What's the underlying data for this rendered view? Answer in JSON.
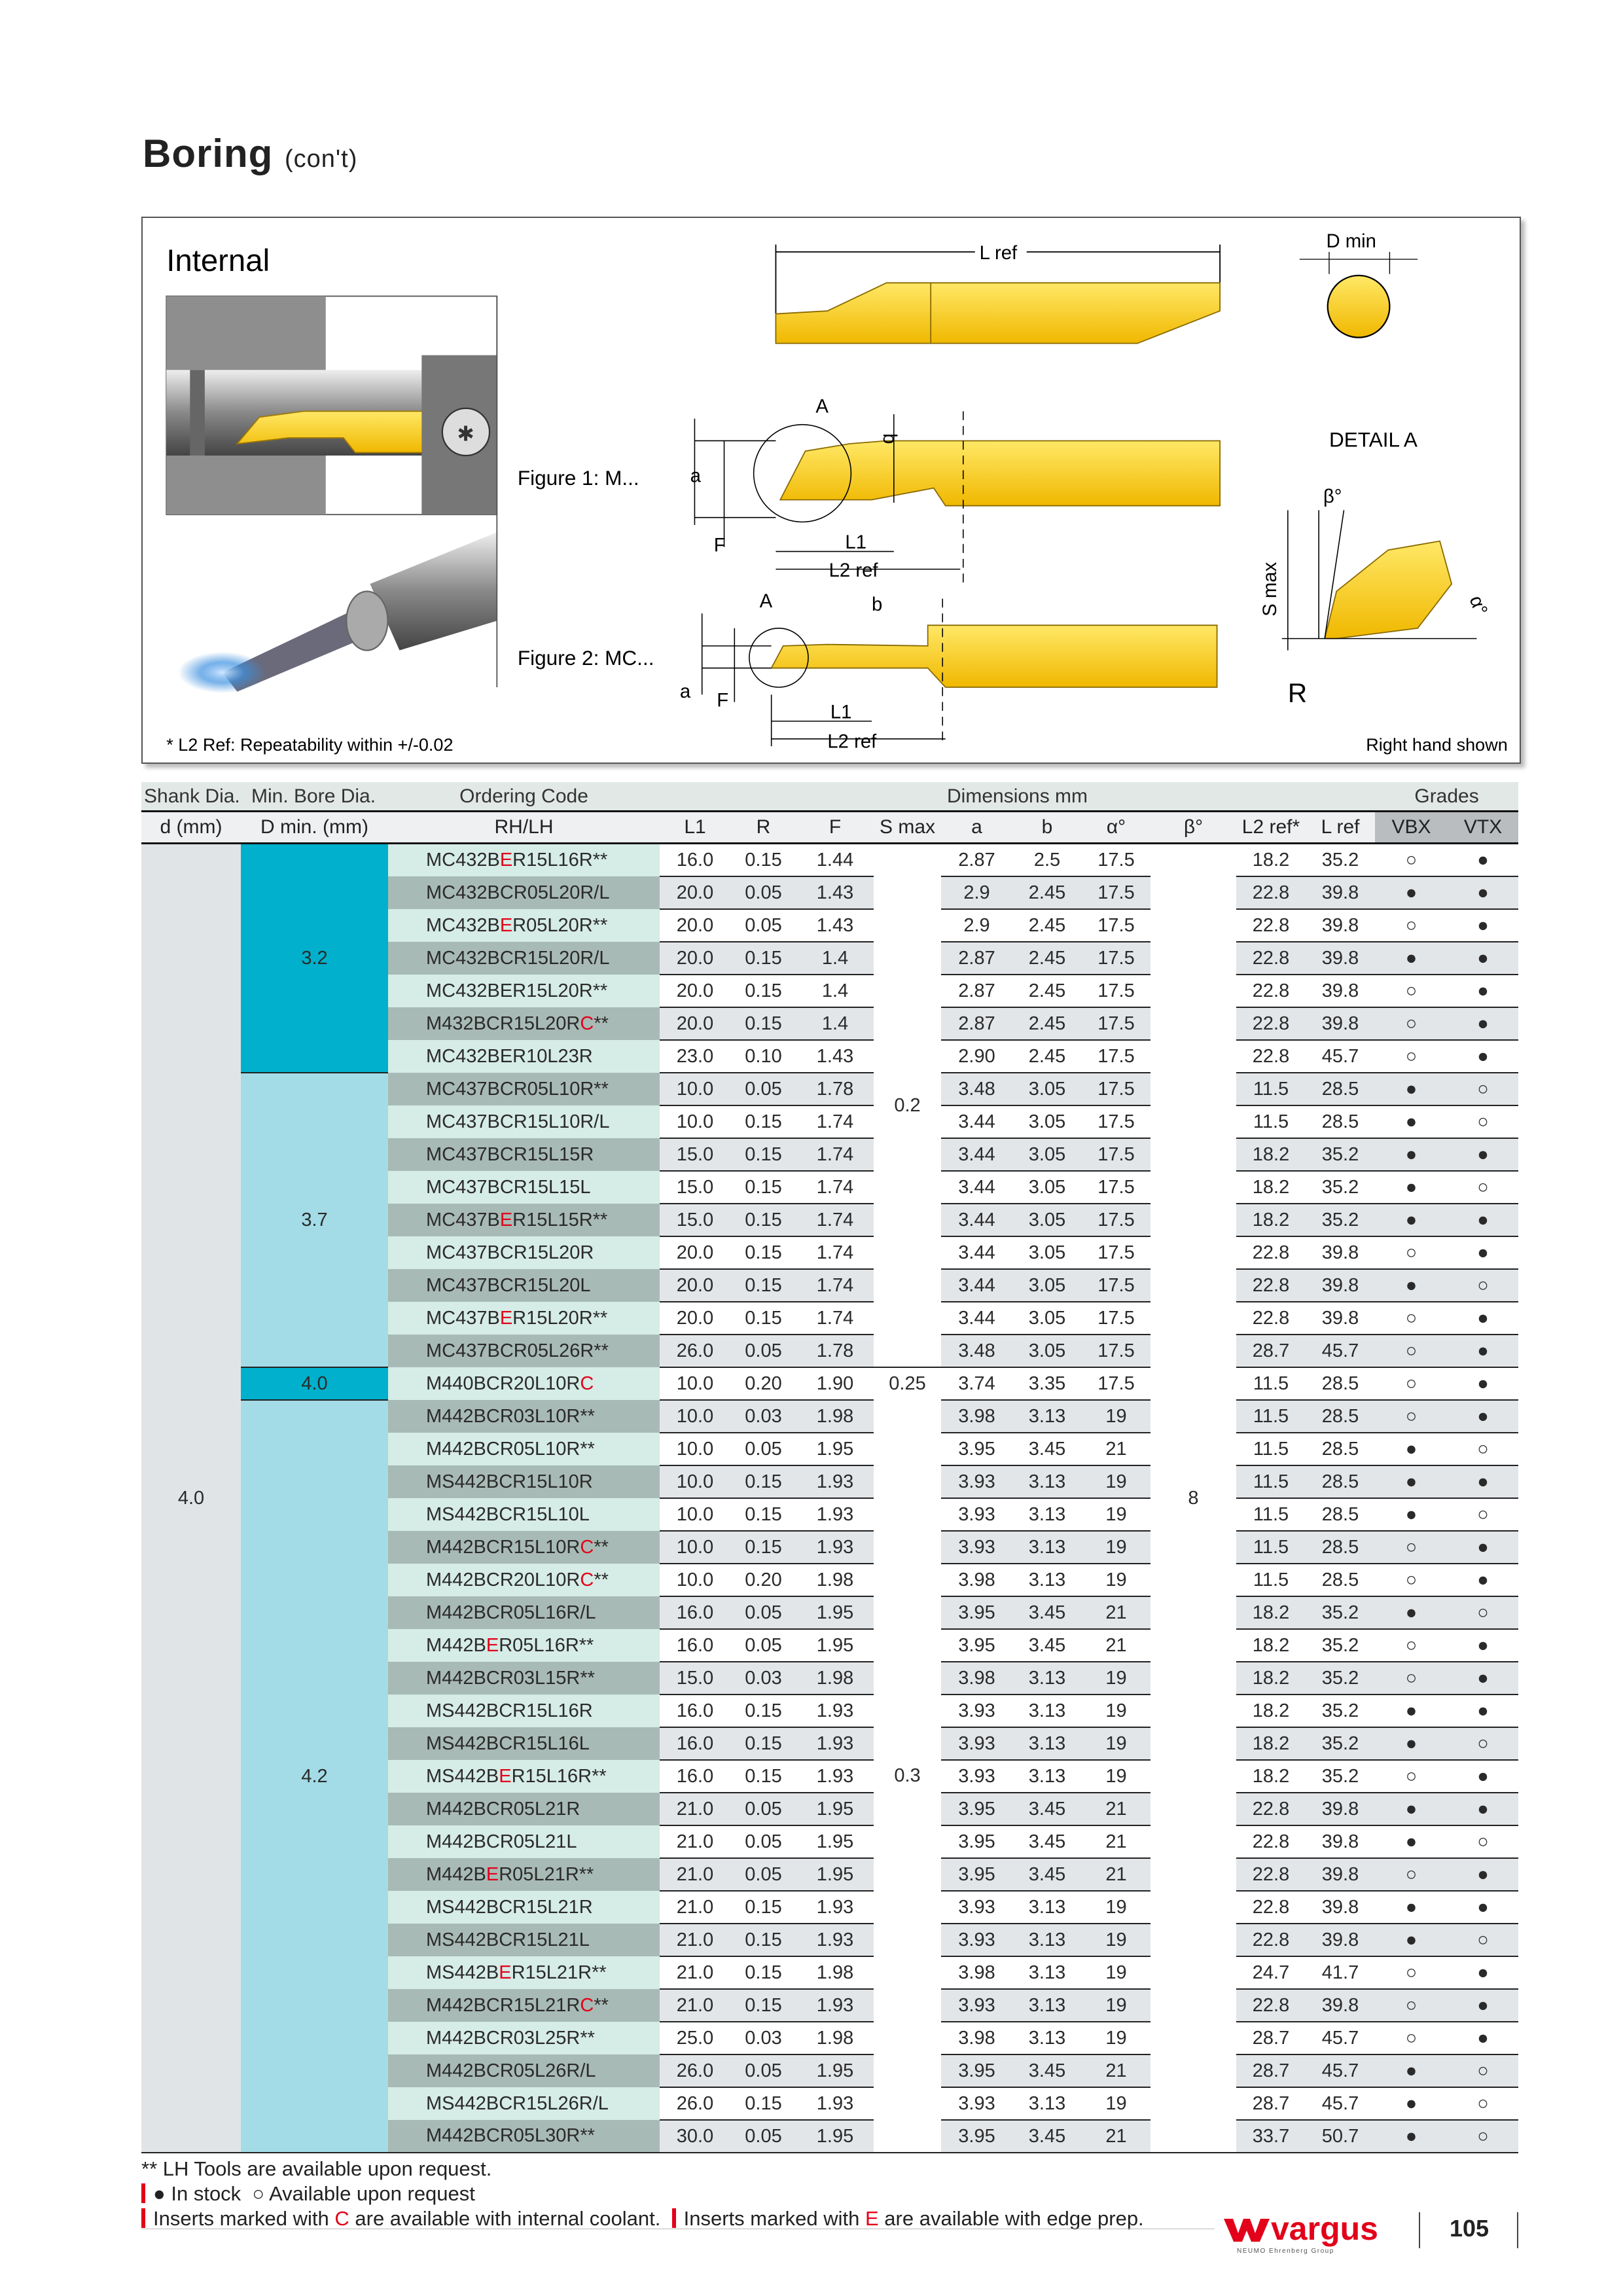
{
  "header": {
    "title": "Boring",
    "subtitle": "(con't)"
  },
  "figure": {
    "section_label": "Internal",
    "figure1_label": "Figure 1: M...",
    "figure2_label": "Figure 2: MC...",
    "detail_label": "DETAIL A",
    "dims": {
      "lref": "L ref",
      "dmin": "D min",
      "A": "A",
      "b": "b",
      "a": "a",
      "F": "F",
      "L1": "L1",
      "L2ref": "L2 ref",
      "beta": "β°",
      "smax": "S max",
      "alpha": "α°",
      "R": "R"
    },
    "footnote": "* L2 Ref: Repeatability within +/-0.02",
    "hand_note": "Right hand shown",
    "colors": {
      "insert_yellow": "#ffd200",
      "accent_red": "#e2001a",
      "dmin_dark": "#00b0cc",
      "dmin_light": "#a3dce6"
    }
  },
  "table": {
    "group_headers": {
      "shank": "Shank Dia.",
      "dmin": "Min. Bore Dia.",
      "code": "Ordering Code",
      "dims": "Dimensions mm",
      "grades": "Grades"
    },
    "columns": {
      "shank": "d (mm)",
      "dmin": "D min. (mm)",
      "code": "RH/LH",
      "L1": "L1",
      "R": "R",
      "F": "F",
      "smax": "S max",
      "a": "a",
      "b": "b",
      "alpha": "α°",
      "beta": "β°",
      "L2": "L2 ref*",
      "Lref": "L ref",
      "VBX": "VBX",
      "VTX": "VTX"
    },
    "shank_value": "4.0",
    "beta_value": "8",
    "dmin_groups": [
      {
        "value": "3.2",
        "rows": 7,
        "style": "dark"
      },
      {
        "value": "3.7",
        "rows": 9,
        "style": "light"
      },
      {
        "value": "4.0",
        "rows": 1,
        "style": "dark"
      },
      {
        "value": "4.2",
        "rows": 23,
        "style": "light"
      }
    ],
    "smax_groups": [
      {
        "value": "0.2",
        "rows": 16
      },
      {
        "value": "0.25",
        "rows": 1
      },
      {
        "value": "0.3",
        "rows": 23
      }
    ],
    "row_fields": [
      "code_pre",
      "code_highlight",
      "code_post",
      "L1",
      "R",
      "F",
      "a",
      "b",
      "alpha",
      "L2",
      "Lref",
      "VBX",
      "VTX"
    ],
    "rows": [
      [
        "MC432B",
        "E",
        "R15L16R**",
        "16.0",
        "0.15",
        "1.44",
        "2.87",
        "2.5",
        "17.5",
        "18.2",
        "35.2",
        "○",
        "●"
      ],
      [
        "MC432BCR05L20R/L",
        "",
        "",
        "20.0",
        "0.05",
        "1.43",
        "2.9",
        "2.45",
        "17.5",
        "22.8",
        "39.8",
        "●",
        "●"
      ],
      [
        "MC432B",
        "E",
        "R05L20R**",
        "20.0",
        "0.05",
        "1.43",
        "2.9",
        "2.45",
        "17.5",
        "22.8",
        "39.8",
        "○",
        "●"
      ],
      [
        "MC432BCR15L20R/L",
        "",
        "",
        "20.0",
        "0.15",
        "1.4",
        "2.87",
        "2.45",
        "17.5",
        "22.8",
        "39.8",
        "●",
        "●"
      ],
      [
        "MC432BER15L20R**",
        "",
        "",
        "20.0",
        "0.15",
        "1.4",
        "2.87",
        "2.45",
        "17.5",
        "22.8",
        "39.8",
        "○",
        "●"
      ],
      [
        "M432BCR15L20R",
        "C",
        "**",
        "20.0",
        "0.15",
        "1.4",
        "2.87",
        "2.45",
        "17.5",
        "22.8",
        "39.8",
        "○",
        "●"
      ],
      [
        "MC432BER10L23R",
        "",
        "",
        "23.0",
        "0.10",
        "1.43",
        "2.90",
        "2.45",
        "17.5",
        "22.8",
        "45.7",
        "○",
        "●"
      ],
      [
        "MC437BCR05L10R**",
        "",
        "",
        "10.0",
        "0.05",
        "1.78",
        "3.48",
        "3.05",
        "17.5",
        "11.5",
        "28.5",
        "●",
        "○"
      ],
      [
        "MC437BCR15L10R/L",
        "",
        "",
        "10.0",
        "0.15",
        "1.74",
        "3.44",
        "3.05",
        "17.5",
        "11.5",
        "28.5",
        "●",
        "○"
      ],
      [
        "MC437BCR15L15R",
        "",
        "",
        "15.0",
        "0.15",
        "1.74",
        "3.44",
        "3.05",
        "17.5",
        "18.2",
        "35.2",
        "●",
        "●"
      ],
      [
        "MC437BCR15L15L",
        "",
        "",
        "15.0",
        "0.15",
        "1.74",
        "3.44",
        "3.05",
        "17.5",
        "18.2",
        "35.2",
        "●",
        "○"
      ],
      [
        "MC437B",
        "E",
        "R15L15R**",
        "15.0",
        "0.15",
        "1.74",
        "3.44",
        "3.05",
        "17.5",
        "18.2",
        "35.2",
        "●",
        "●"
      ],
      [
        "MC437BCR15L20R",
        "",
        "",
        "20.0",
        "0.15",
        "1.74",
        "3.44",
        "3.05",
        "17.5",
        "22.8",
        "39.8",
        "○",
        "●"
      ],
      [
        "MC437BCR15L20L",
        "",
        "",
        "20.0",
        "0.15",
        "1.74",
        "3.44",
        "3.05",
        "17.5",
        "22.8",
        "39.8",
        "●",
        "○"
      ],
      [
        "MC437B",
        "E",
        "R15L20R**",
        "20.0",
        "0.15",
        "1.74",
        "3.44",
        "3.05",
        "17.5",
        "22.8",
        "39.8",
        "○",
        "●"
      ],
      [
        "MC437BCR05L26R**",
        "",
        "",
        "26.0",
        "0.05",
        "1.78",
        "3.48",
        "3.05",
        "17.5",
        "28.7",
        "45.7",
        "○",
        "●"
      ],
      [
        "M440BCR20L10R",
        "C",
        "",
        "10.0",
        "0.20",
        "1.90",
        "3.74",
        "3.35",
        "17.5",
        "11.5",
        "28.5",
        "○",
        "●"
      ],
      [
        "M442BCR03L10R**",
        "",
        "",
        "10.0",
        "0.03",
        "1.98",
        "3.98",
        "3.13",
        "19",
        "11.5",
        "28.5",
        "○",
        "●"
      ],
      [
        "M442BCR05L10R**",
        "",
        "",
        "10.0",
        "0.05",
        "1.95",
        "3.95",
        "3.45",
        "21",
        "11.5",
        "28.5",
        "●",
        "○"
      ],
      [
        "MS442BCR15L10R",
        "",
        "",
        "10.0",
        "0.15",
        "1.93",
        "3.93",
        "3.13",
        "19",
        "11.5",
        "28.5",
        "●",
        "●"
      ],
      [
        "MS442BCR15L10L",
        "",
        "",
        "10.0",
        "0.15",
        "1.93",
        "3.93",
        "3.13",
        "19",
        "11.5",
        "28.5",
        "●",
        "○"
      ],
      [
        "M442BCR15L10R",
        "C",
        "**",
        "10.0",
        "0.15",
        "1.93",
        "3.93",
        "3.13",
        "19",
        "11.5",
        "28.5",
        "○",
        "●"
      ],
      [
        "M442BCR20L10R",
        "C",
        "**",
        "10.0",
        "0.20",
        "1.98",
        "3.98",
        "3.13",
        "19",
        "11.5",
        "28.5",
        "○",
        "●"
      ],
      [
        "M442BCR05L16R/L",
        "",
        "",
        "16.0",
        "0.05",
        "1.95",
        "3.95",
        "3.45",
        "21",
        "18.2",
        "35.2",
        "●",
        "○"
      ],
      [
        "M442B",
        "E",
        "R05L16R**",
        "16.0",
        "0.05",
        "1.95",
        "3.95",
        "3.45",
        "21",
        "18.2",
        "35.2",
        "○",
        "●"
      ],
      [
        "M442BCR03L15R**",
        "",
        "",
        "15.0",
        "0.03",
        "1.98",
        "3.98",
        "3.13",
        "19",
        "18.2",
        "35.2",
        "○",
        "●"
      ],
      [
        "MS442BCR15L16R",
        "",
        "",
        "16.0",
        "0.15",
        "1.93",
        "3.93",
        "3.13",
        "19",
        "18.2",
        "35.2",
        "●",
        "●"
      ],
      [
        "MS442BCR15L16L",
        "",
        "",
        "16.0",
        "0.15",
        "1.93",
        "3.93",
        "3.13",
        "19",
        "18.2",
        "35.2",
        "●",
        "○"
      ],
      [
        "MS442B",
        "E",
        "R15L16R**",
        "16.0",
        "0.15",
        "1.93",
        "3.93",
        "3.13",
        "19",
        "18.2",
        "35.2",
        "○",
        "●"
      ],
      [
        "M442BCR05L21R",
        "",
        "",
        "21.0",
        "0.05",
        "1.95",
        "3.95",
        "3.45",
        "21",
        "22.8",
        "39.8",
        "●",
        "●"
      ],
      [
        "M442BCR05L21L",
        "",
        "",
        "21.0",
        "0.05",
        "1.95",
        "3.95",
        "3.45",
        "21",
        "22.8",
        "39.8",
        "●",
        "○"
      ],
      [
        "M442B",
        "E",
        "R05L21R**",
        "21.0",
        "0.05",
        "1.95",
        "3.95",
        "3.45",
        "21",
        "22.8",
        "39.8",
        "○",
        "●"
      ],
      [
        "MS442BCR15L21R",
        "",
        "",
        "21.0",
        "0.15",
        "1.93",
        "3.93",
        "3.13",
        "19",
        "22.8",
        "39.8",
        "●",
        "●"
      ],
      [
        "MS442BCR15L21L",
        "",
        "",
        "21.0",
        "0.15",
        "1.93",
        "3.93",
        "3.13",
        "19",
        "22.8",
        "39.8",
        "●",
        "○"
      ],
      [
        "MS442B",
        "E",
        "R15L21R**",
        "21.0",
        "0.15",
        "1.98",
        "3.98",
        "3.13",
        "19",
        "24.7",
        "41.7",
        "○",
        "●"
      ],
      [
        "M442BCR15L21R",
        "C",
        "**",
        "21.0",
        "0.15",
        "1.93",
        "3.93",
        "3.13",
        "19",
        "22.8",
        "39.8",
        "○",
        "●"
      ],
      [
        "M442BCR03L25R**",
        "",
        "",
        "25.0",
        "0.03",
        "1.98",
        "3.98",
        "3.13",
        "19",
        "28.7",
        "45.7",
        "○",
        "●"
      ],
      [
        "M442BCR05L26R/L",
        "",
        "",
        "26.0",
        "0.05",
        "1.95",
        "3.95",
        "3.45",
        "21",
        "28.7",
        "45.7",
        "●",
        "○"
      ],
      [
        "MS442BCR15L26R/L",
        "",
        "",
        "26.0",
        "0.15",
        "1.93",
        "3.93",
        "3.13",
        "19",
        "28.7",
        "45.7",
        "●",
        "○"
      ],
      [
        "M442BCR05L30R**",
        "",
        "",
        "30.0",
        "0.05",
        "1.95",
        "3.95",
        "3.45",
        "21",
        "33.7",
        "50.7",
        "●",
        "○"
      ]
    ]
  },
  "notes": {
    "lh_tools": "** LH Tools are available upon request.",
    "stock_symbol": "●",
    "stock_label": "In stock",
    "request_symbol": "○",
    "request_label": "Available upon request",
    "coolant_pre": "Inserts marked with ",
    "coolant_letter": "C",
    "coolant_post": " are available with internal coolant.",
    "edge_pre": "Inserts marked with ",
    "edge_letter": "E",
    "edge_post": " are available with edge prep."
  },
  "footer": {
    "brand": "vargus",
    "brand_tagline": "NEUMO Ehrenberg Group",
    "page_number": "105"
  }
}
